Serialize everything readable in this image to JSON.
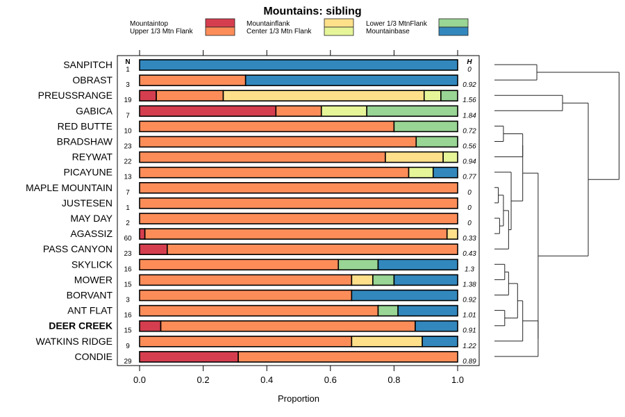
{
  "chart_data": {
    "type": "bar",
    "subtype": "stacked-horizontal-proportion",
    "title": "Mountains: sibling",
    "xlabel": "Proportion",
    "ylabel": "",
    "xlim": [
      0,
      1
    ],
    "xticks": [
      0.0,
      0.2,
      0.4,
      0.6,
      0.8,
      1.0
    ],
    "xtick_labels": [
      "0.0",
      "0.2",
      "0.4",
      "0.6",
      "0.8",
      "1.0"
    ],
    "n_header": "N",
    "h_header": "H",
    "legend": [
      {
        "name": "Mountaintop",
        "color": "#D53E4F"
      },
      {
        "name": "Upper 1/3 Mtn Flank",
        "color": "#FC8D59"
      },
      {
        "name": "Mountainflank",
        "color": "#FEE08B"
      },
      {
        "name": "Center 1/3 Mtn Flank",
        "color": "#E6F598"
      },
      {
        "name": "Lower 1/3 MtnFlank",
        "color": "#99D594"
      },
      {
        "name": "Mountainbase",
        "color": "#3288BD"
      }
    ],
    "legend_position": "top",
    "highlighted_category": "DEER CREEK",
    "categories": [
      "SANPITCH",
      "OBRAST",
      "PREUSSRANGE",
      "GABICA",
      "RED BUTTE",
      "BRADSHAW",
      "REYWAT",
      "PICAYUNE",
      "MAPLE MOUNTAIN",
      "JUSTESEN",
      "MAY DAY",
      "AGASSIZ",
      "PASS CANYON",
      "SKYLICK",
      "MOWER",
      "BORVANT",
      "ANT FLAT",
      "DEER CREEK",
      "WATKINS RIDGE",
      "CONDIE"
    ],
    "n": [
      1,
      3,
      19,
      7,
      10,
      23,
      22,
      13,
      7,
      1,
      2,
      60,
      23,
      16,
      15,
      3,
      16,
      15,
      9,
      29
    ],
    "h": [
      "0",
      "0.92",
      "1.56",
      "1.84",
      "0.72",
      "0.56",
      "0.94",
      "0.77",
      "0",
      "0",
      "0",
      "0.33",
      "0.43",
      "1.3",
      "1.38",
      "0.92",
      "1.01",
      "0.91",
      "1.22",
      "0.89"
    ],
    "series": [
      {
        "name": "Mountaintop",
        "values": [
          0,
          0,
          0.0526,
          0.4286,
          0,
          0,
          0,
          0,
          0,
          0,
          0,
          0.0167,
          0.087,
          0,
          0,
          0,
          0,
          0.0667,
          0,
          0.3103
        ]
      },
      {
        "name": "Upper 1/3 Mtn Flank",
        "values": [
          0,
          0.3333,
          0.2105,
          0.1429,
          0.8,
          0.8696,
          0.7727,
          0.8462,
          1,
          1,
          1,
          0.95,
          0.913,
          0.625,
          0.6667,
          0.6667,
          0.75,
          0.8,
          0.6667,
          0.6897
        ]
      },
      {
        "name": "Mountainflank",
        "values": [
          0,
          0,
          0.6316,
          0,
          0,
          0,
          0.1818,
          0,
          0,
          0,
          0,
          0.0333,
          0,
          0,
          0.0667,
          0,
          0,
          0,
          0.2222,
          0
        ]
      },
      {
        "name": "Center 1/3 Mtn Flank",
        "values": [
          0,
          0,
          0.0526,
          0.1429,
          0,
          0,
          0.0455,
          0.0769,
          0,
          0,
          0,
          0,
          0,
          0,
          0,
          0,
          0,
          0,
          0,
          0
        ]
      },
      {
        "name": "Lower 1/3 MtnFlank",
        "values": [
          0,
          0,
          0.0526,
          0.2857,
          0.2,
          0.1304,
          0,
          0,
          0,
          0,
          0,
          0,
          0,
          0.125,
          0.0667,
          0,
          0.0625,
          0,
          0,
          0
        ]
      },
      {
        "name": "Mountainbase",
        "values": [
          1,
          0.6667,
          0,
          0,
          0,
          0,
          0,
          0.0769,
          0,
          0,
          0,
          0,
          0,
          0.25,
          0.2,
          0.3333,
          0.1875,
          0.1333,
          0.1111,
          0
        ]
      }
    ],
    "dendrogram": {
      "leaf_order": [
        "SANPITCH",
        "OBRAST",
        "PREUSSRANGE",
        "GABICA",
        "RED BUTTE",
        "BRADSHAW",
        "REYWAT",
        "PICAYUNE",
        "MAPLE MOUNTAIN",
        "JUSTESEN",
        "MAY DAY",
        "AGASSIZ",
        "PASS CANYON",
        "SKYLICK",
        "MOWER",
        "BORVANT",
        "ANT FLAT",
        "DEER CREEK",
        "WATKINS RIDGE",
        "CONDIE"
      ],
      "merges": [
        {
          "a": "L:SANPITCH",
          "b": "L:OBRAST",
          "height": 0.33
        },
        {
          "a": "L:PREUSSRANGE",
          "b": "L:GABICA",
          "height": 0.53
        },
        {
          "a": "L:RED BUTTE",
          "b": "L:BRADSHAW",
          "height": 0.07
        },
        {
          "a": "N:2",
          "b": "L:REYWAT",
          "height": 0.22
        },
        {
          "a": "L:MAPLE MOUNTAIN",
          "b": "L:JUSTESEN",
          "height": 0.03
        },
        {
          "a": "L:MAY DAY",
          "b": "L:AGASSIZ",
          "height": 0.04
        },
        {
          "a": "N:4",
          "b": "N:5",
          "height": 0.07
        },
        {
          "a": "N:6",
          "b": "L:PASS CANYON",
          "height": 0.11
        },
        {
          "a": "L:PICAYUNE",
          "b": "N:7",
          "height": 0.13
        },
        {
          "a": "N:3",
          "b": "N:8",
          "height": 0.22
        },
        {
          "a": "L:SKYLICK",
          "b": "L:MOWER",
          "height": 0.08
        },
        {
          "a": "N:10",
          "b": "L:BORVANT",
          "height": 0.11
        },
        {
          "a": "L:ANT FLAT",
          "b": "L:DEER CREEK",
          "height": 0.08
        },
        {
          "a": "N:11",
          "b": "N:12",
          "height": 0.18
        },
        {
          "a": "N:13",
          "b": "L:WATKINS RIDGE",
          "height": 0.22
        },
        {
          "a": "N:14",
          "b": "L:CONDIE",
          "height": 0.34
        },
        {
          "a": "N:9",
          "b": "N:15",
          "height": 0.34
        },
        {
          "a": "N:1",
          "b": "N:16",
          "height": 0.73
        },
        {
          "a": "N:0",
          "b": "N:17",
          "height": 0.97
        }
      ]
    }
  }
}
